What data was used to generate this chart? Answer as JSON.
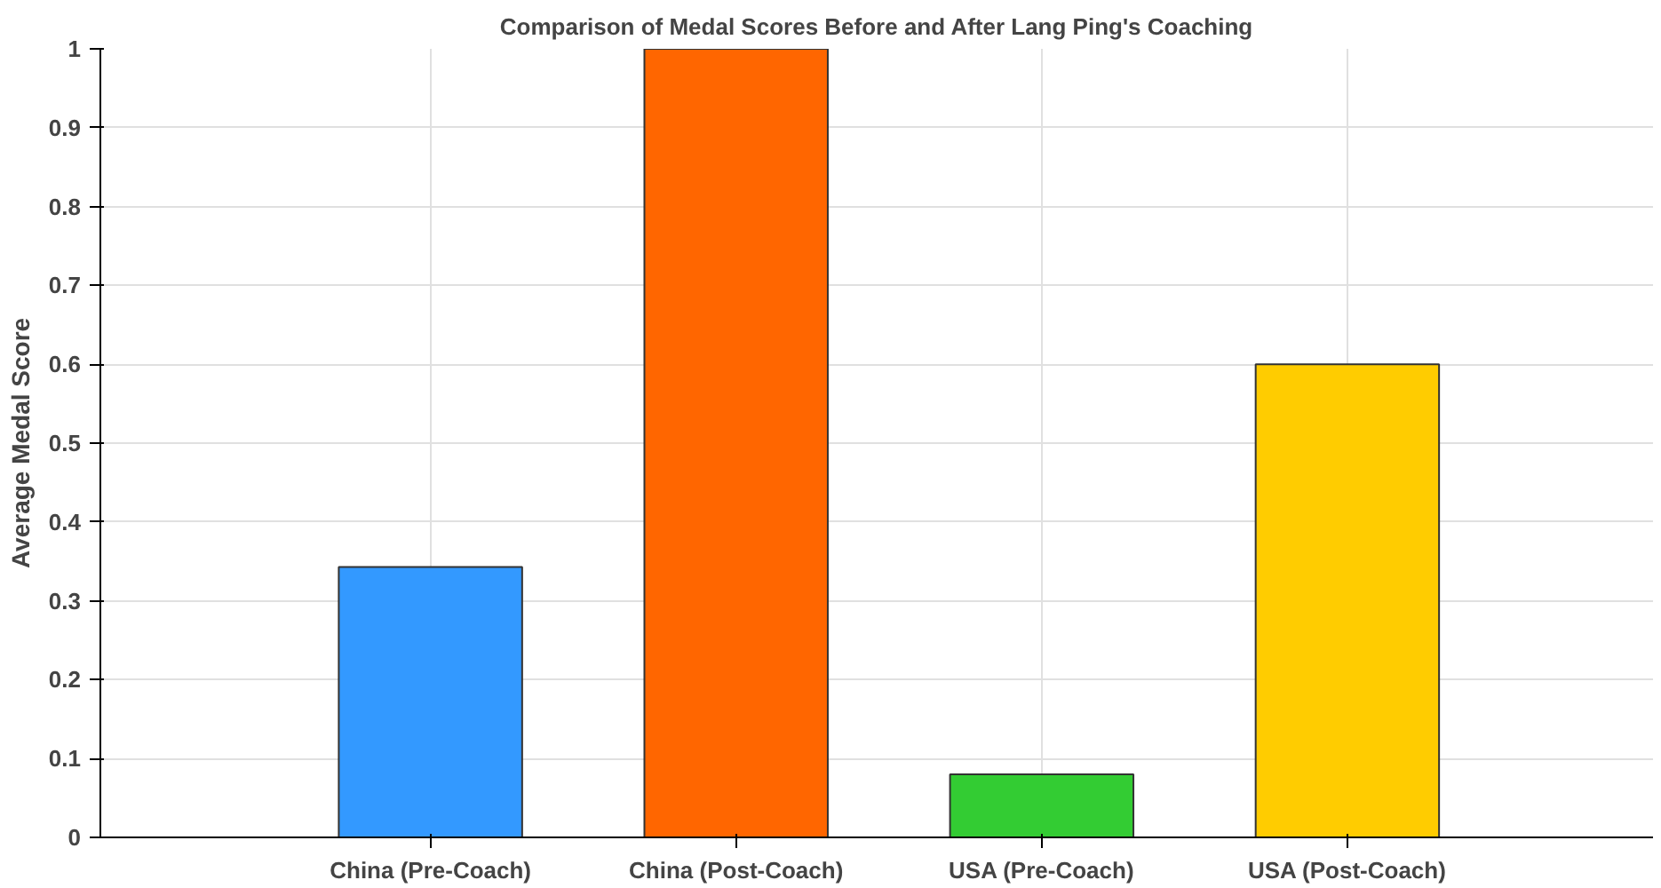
{
  "chart_data": {
    "type": "bar",
    "title": "Comparison of Medal Scores Before and After Lang Ping's Coaching",
    "ylabel": "Average Medal Score",
    "categories": [
      "China (Pre-Coach)",
      "China (Post-Coach)",
      "USA (Pre-Coach)",
      "USA (Post-Coach)"
    ],
    "values": [
      0.343,
      1.0,
      0.08,
      0.6
    ],
    "colors": [
      "#3399ff",
      "#ff6600",
      "#33cc33",
      "#ffcc00"
    ],
    "ylim": [
      0,
      1
    ],
    "yticks": [
      0,
      0.1,
      0.2,
      0.3,
      0.4,
      0.5,
      0.6,
      0.7,
      0.8,
      0.9,
      1
    ],
    "grid": true
  }
}
